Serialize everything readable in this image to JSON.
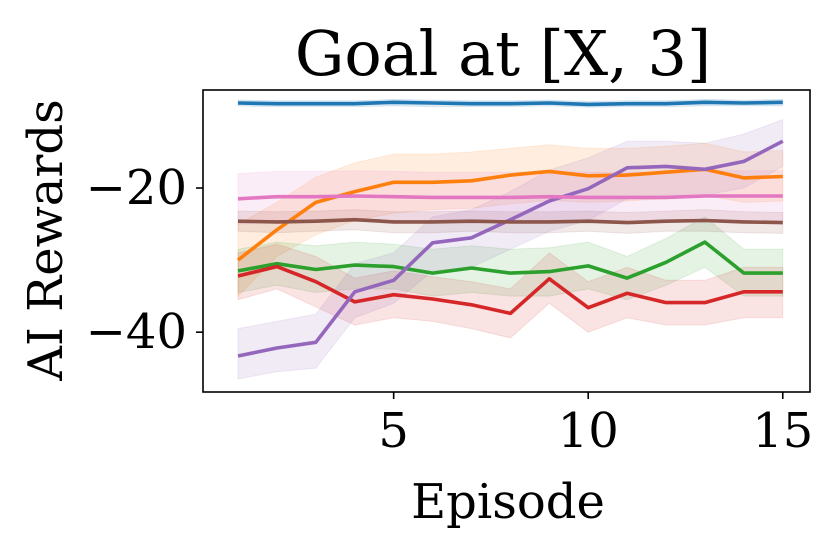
{
  "chart_data": {
    "type": "line",
    "title": "Goal at [X, 3]",
    "xlabel": "Episode",
    "ylabel": "AI Rewards",
    "xlim": [
      0.1,
      15.7
    ],
    "ylim": [
      -48.3,
      -6.4
    ],
    "xticks": [
      5,
      10,
      15
    ],
    "xtick_labels": [
      "5",
      "10",
      "15"
    ],
    "yticks": [
      -20,
      -40
    ],
    "ytick_labels": [
      "−20",
      "−40"
    ],
    "grid": false,
    "legend": "none",
    "x": [
      1,
      2,
      3,
      4,
      5,
      6,
      7,
      8,
      9,
      10,
      11,
      12,
      13,
      14,
      15
    ],
    "series": [
      {
        "color": "#1f77b4",
        "values": [
          -8.2,
          -8.3,
          -8.3,
          -8.3,
          -8.1,
          -8.2,
          -8.3,
          -8.3,
          -8.2,
          -8.4,
          -8.3,
          -8.3,
          -8.1,
          -8.2,
          -8.1
        ],
        "band_lower": [
          -8.6,
          -8.7,
          -8.7,
          -8.7,
          -8.6,
          -8.7,
          -8.7,
          -8.7,
          -8.6,
          -8.8,
          -8.7,
          -8.7,
          -8.6,
          -8.6,
          -8.6
        ],
        "band_upper": [
          -7.8,
          -7.9,
          -7.9,
          -7.9,
          -7.7,
          -7.8,
          -7.9,
          -7.9,
          -7.8,
          -8.0,
          -7.9,
          -7.9,
          -7.7,
          -7.8,
          -7.7
        ]
      },
      {
        "color": "#ff7f0e",
        "values": [
          -30.0,
          -25.8,
          -22.0,
          -20.5,
          -19.2,
          -19.2,
          -19.0,
          -18.2,
          -17.7,
          -18.3,
          -18.2,
          -17.8,
          -17.4,
          -18.6,
          -18.4
        ],
        "band_lower": [
          -35.0,
          -29.5,
          -26.5,
          -24.5,
          -23.5,
          -23.0,
          -22.8,
          -22.2,
          -21.7,
          -22.0,
          -21.8,
          -21.5,
          -21.0,
          -22.0,
          -21.8
        ],
        "band_upper": [
          -25.0,
          -22.0,
          -18.5,
          -16.5,
          -15.3,
          -15.3,
          -15.0,
          -14.5,
          -14.0,
          -14.5,
          -14.5,
          -14.2,
          -13.8,
          -15.0,
          -14.8
        ]
      },
      {
        "color": "#2ca02c",
        "values": [
          -31.5,
          -30.5,
          -31.3,
          -30.7,
          -30.9,
          -31.8,
          -31.1,
          -31.8,
          -31.6,
          -30.8,
          -32.5,
          -30.3,
          -27.5,
          -31.8,
          -31.8
        ],
        "band_lower": [
          -34.5,
          -33.5,
          -34.5,
          -34.0,
          -34.0,
          -35.0,
          -34.5,
          -35.0,
          -35.0,
          -34.0,
          -35.5,
          -33.5,
          -31.0,
          -35.0,
          -35.0
        ],
        "band_upper": [
          -28.5,
          -27.5,
          -28.0,
          -27.5,
          -27.8,
          -28.5,
          -28.0,
          -28.5,
          -28.3,
          -27.5,
          -29.5,
          -27.0,
          -24.0,
          -28.5,
          -28.5
        ]
      },
      {
        "color": "#d62728",
        "values": [
          -32.2,
          -30.9,
          -33.0,
          -35.8,
          -34.8,
          -35.4,
          -36.2,
          -37.4,
          -32.6,
          -36.6,
          -34.6,
          -35.9,
          -35.9,
          -34.4,
          -34.4
        ],
        "band_lower": [
          -35.5,
          -34.0,
          -36.5,
          -39.0,
          -38.0,
          -38.5,
          -39.5,
          -40.8,
          -36.0,
          -40.0,
          -38.0,
          -39.0,
          -39.0,
          -38.0,
          -38.0
        ],
        "band_upper": [
          -29.0,
          -27.8,
          -29.5,
          -32.5,
          -31.5,
          -32.3,
          -33.0,
          -34.0,
          -29.0,
          -33.0,
          -31.0,
          -32.8,
          -32.8,
          -31.0,
          -31.0
        ]
      },
      {
        "color": "#9467bd",
        "values": [
          -43.3,
          -42.2,
          -41.4,
          -34.4,
          -32.8,
          -27.6,
          -26.9,
          -24.4,
          -21.8,
          -20.1,
          -17.2,
          -17.0,
          -17.4,
          -16.3,
          -13.5
        ],
        "band_lower": [
          -46.5,
          -45.5,
          -45.0,
          -38.0,
          -36.0,
          -31.5,
          -31.0,
          -28.5,
          -26.0,
          -24.5,
          -21.5,
          -21.0,
          -21.0,
          -20.0,
          -17.0
        ],
        "band_upper": [
          -39.5,
          -38.5,
          -37.5,
          -30.5,
          -29.0,
          -24.0,
          -23.0,
          -20.5,
          -17.5,
          -15.8,
          -13.5,
          -13.5,
          -13.8,
          -12.5,
          -10.5
        ]
      },
      {
        "color": "#8c564b",
        "values": [
          -24.6,
          -24.7,
          -24.6,
          -24.4,
          -24.7,
          -24.7,
          -24.6,
          -24.7,
          -24.7,
          -24.6,
          -24.8,
          -24.6,
          -24.5,
          -24.7,
          -24.8
        ],
        "band_lower": [
          -26.0,
          -26.2,
          -26.0,
          -25.8,
          -26.2,
          -26.2,
          -26.0,
          -26.2,
          -26.2,
          -26.0,
          -26.3,
          -26.0,
          -26.0,
          -26.2,
          -26.3
        ],
        "band_upper": [
          -23.2,
          -23.3,
          -23.2,
          -23.0,
          -23.3,
          -23.3,
          -23.2,
          -23.3,
          -23.3,
          -23.2,
          -23.4,
          -23.2,
          -23.0,
          -23.3,
          -23.4
        ]
      },
      {
        "color": "#e377c2",
        "values": [
          -21.5,
          -21.2,
          -21.2,
          -21.1,
          -21.2,
          -21.3,
          -21.3,
          -21.3,
          -21.2,
          -21.3,
          -21.3,
          -21.3,
          -21.1,
          -21.1,
          -21.1
        ],
        "band_lower": [
          -25.0,
          -24.8,
          -24.8,
          -24.6,
          -24.7,
          -24.8,
          -24.8,
          -24.8,
          -24.7,
          -24.8,
          -24.8,
          -24.8,
          -24.6,
          -24.6,
          -24.6
        ],
        "band_upper": [
          -18.0,
          -17.7,
          -17.7,
          -17.6,
          -17.7,
          -17.8,
          -17.8,
          -17.8,
          -17.7,
          -17.8,
          -17.8,
          -17.8,
          -17.6,
          -17.6,
          -17.6
        ]
      }
    ]
  }
}
